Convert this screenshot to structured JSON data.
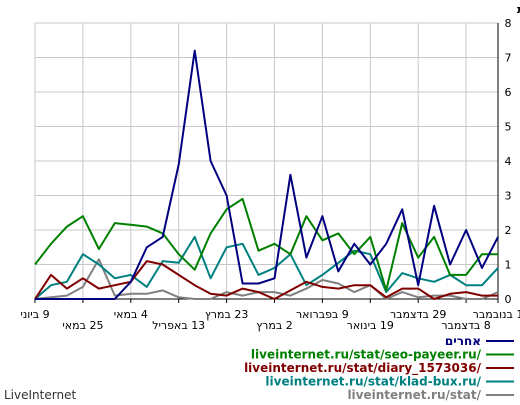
{
  "chart_data": {
    "type": "line",
    "ylabel": "כמות",
    "ylim": [
      0,
      8
    ],
    "yticks": [
      0,
      1,
      2,
      3,
      4,
      5,
      6,
      7,
      8
    ],
    "grid": true,
    "x_direction": "right-to-left",
    "n_points": 30,
    "xticks": [
      {
        "label": "1 בנובמבר",
        "row": 1,
        "index": 0
      },
      {
        "label": "8 בדצמבר",
        "row": 2,
        "index": 2
      },
      {
        "label": "29 בדצמבר",
        "row": 1,
        "index": 5
      },
      {
        "label": "19 בינואר",
        "row": 2,
        "index": 8
      },
      {
        "label": "9 בפברואר",
        "row": 1,
        "index": 11
      },
      {
        "label": "2 במרץ",
        "row": 2,
        "index": 14
      },
      {
        "label": "23 במרץ",
        "row": 1,
        "index": 17
      },
      {
        "label": "13 באפריל",
        "row": 2,
        "index": 20
      },
      {
        "label": "4 במאי",
        "row": 1,
        "index": 23
      },
      {
        "label": "25 במאי",
        "row": 2,
        "index": 26
      },
      {
        "label": "9 ביוני",
        "row": 1,
        "index": 29
      }
    ],
    "series": [
      {
        "name": "אחרים",
        "color": "#000080",
        "values": [
          1.8,
          0.9,
          2.0,
          1.0,
          2.7,
          0.4,
          2.6,
          1.6,
          1.0,
          1.6,
          0.8,
          2.4,
          1.2,
          3.6,
          0.6,
          0.45,
          0.45,
          3.0,
          4.0,
          7.2,
          3.9,
          1.8,
          1.5,
          0.5,
          0.0,
          0.0,
          0.0,
          0.0,
          0.0,
          0.0
        ]
      },
      {
        "name": "liveinternet.ru/stat/seo-payeer.ru/",
        "color": "#008000",
        "values": [
          1.3,
          1.3,
          0.7,
          0.7,
          1.8,
          1.2,
          2.2,
          0.25,
          1.8,
          1.3,
          1.9,
          1.7,
          2.4,
          1.3,
          1.6,
          1.4,
          2.9,
          2.6,
          1.9,
          0.85,
          1.3,
          1.9,
          2.1,
          2.15,
          2.2,
          1.45,
          2.4,
          2.1,
          1.6,
          1.0
        ]
      },
      {
        "name": "liveinternet.ru/stat/diary_1573036/",
        "color": "#800000",
        "values": [
          0.1,
          0.1,
          0.2,
          0.15,
          0.0,
          0.3,
          0.3,
          0.05,
          0.4,
          0.4,
          0.3,
          0.35,
          0.5,
          0.25,
          0.0,
          0.2,
          0.3,
          0.1,
          0.15,
          0.4,
          0.7,
          1.0,
          1.1,
          0.5,
          0.4,
          0.3,
          0.6,
          0.3,
          0.7,
          0.0
        ]
      },
      {
        "name": "liveinternet.ru/stat/klad-bux.ru/",
        "color": "#008080",
        "values": [
          0.9,
          0.4,
          0.4,
          0.7,
          0.5,
          0.6,
          0.75,
          0.2,
          1.3,
          1.4,
          1.05,
          0.7,
          0.4,
          1.3,
          0.9,
          0.7,
          1.6,
          1.5,
          0.6,
          1.8,
          1.05,
          1.1,
          0.35,
          0.7,
          0.6,
          1.0,
          1.3,
          0.5,
          0.4,
          0.0
        ]
      },
      {
        "name": "liveinternet.ru/stat/",
        "color": "#808080",
        "values": [
          0.2,
          0.0,
          0.0,
          0.1,
          0.1,
          0.05,
          0.2,
          0.0,
          0.4,
          0.2,
          0.45,
          0.55,
          0.3,
          0.1,
          0.2,
          0.2,
          0.1,
          0.2,
          0.0,
          0.0,
          0.05,
          0.25,
          0.15,
          0.15,
          0.1,
          1.15,
          0.35,
          0.1,
          0.05,
          0.0
        ]
      }
    ]
  },
  "footer": {
    "brand": "LiveInternet"
  }
}
